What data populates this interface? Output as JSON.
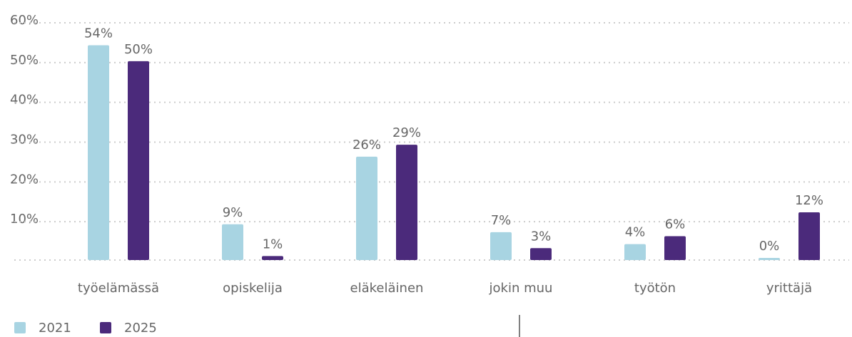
{
  "chart_data": {
    "type": "bar",
    "categories": [
      "työelämässä",
      "opiskelija",
      "eläkeläinen",
      "jokin muu",
      "työtön",
      "yrittäjä"
    ],
    "series": [
      {
        "name": "2021",
        "color": "#a8d4e2",
        "values": [
          54,
          9,
          26,
          7,
          4,
          0
        ],
        "value_labels": [
          "54%",
          "9%",
          "26%",
          "7%",
          "4%",
          "0%"
        ]
      },
      {
        "name": "2025",
        "color": "#4b2a7b",
        "values": [
          50,
          1,
          29,
          3,
          6,
          12
        ],
        "value_labels": [
          "50%",
          "1%",
          "29%",
          "3%",
          "6%",
          "12%"
        ]
      }
    ],
    "ylim": [
      0,
      60
    ],
    "yticks": [
      {
        "value": 10,
        "label": "10%"
      },
      {
        "value": 20,
        "label": "20%"
      },
      {
        "value": 30,
        "label": "30%"
      },
      {
        "value": 40,
        "label": "40%"
      },
      {
        "value": 50,
        "label": "50%"
      },
      {
        "value": 60,
        "label": "60%"
      }
    ],
    "grid": true,
    "legend": "bottom-left"
  }
}
